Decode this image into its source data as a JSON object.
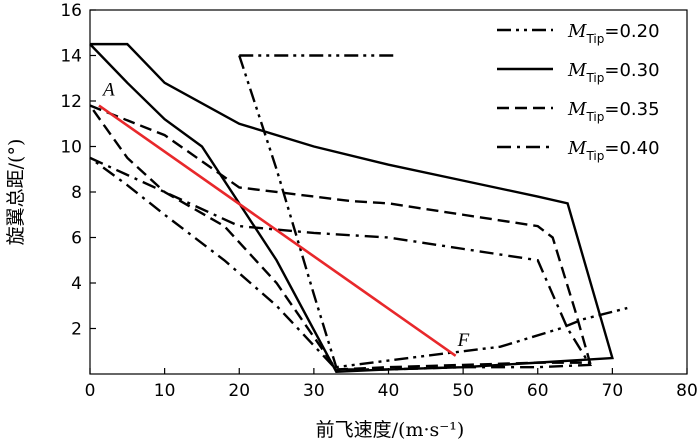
{
  "chart_data": {
    "type": "line",
    "title": "",
    "xlabel": "前飞速度/(m·s⁻¹)",
    "ylabel": "旋翼总距/(°)",
    "xlim": [
      0,
      80
    ],
    "ylim": [
      0,
      16
    ],
    "xticks": [
      "0",
      "10",
      "20",
      "30",
      "40",
      "50",
      "60",
      "70",
      "80"
    ],
    "yticks": [
      "2",
      "4",
      "6",
      "8",
      "10",
      "12",
      "14",
      "16"
    ],
    "legend_position": "top-right",
    "series": [
      {
        "name": "M_Tip=0.20",
        "label_main": "M",
        "label_sub": "Tip",
        "label_val": "=0.20",
        "style": "dash-dot-dot",
        "x": [
          20,
          25,
          30,
          33,
          45,
          55,
          63,
          66,
          72
        ],
        "y": [
          14.0,
          9.0,
          3.5,
          0.3,
          0.8,
          1.2,
          2.0,
          2.4,
          2.9
        ],
        "branch": {
          "x": [
            20,
            30,
            40,
            41
          ],
          "y": [
            14.0,
            14.0,
            14.0,
            14.0
          ]
        }
      },
      {
        "name": "M_Tip=0.30",
        "label_main": "M",
        "label_sub": "Tip",
        "label_val": "=0.30",
        "style": "solid",
        "x": [
          0,
          5,
          10,
          20,
          30,
          40,
          50,
          60,
          64,
          70,
          60,
          50,
          40,
          33,
          25,
          15,
          10,
          5,
          0
        ],
        "y": [
          14.5,
          14.5,
          12.8,
          11.0,
          10.0,
          9.2,
          8.5,
          7.8,
          7.5,
          0.7,
          0.5,
          0.3,
          0.2,
          0.1,
          5.0,
          10.0,
          11.2,
          12.8,
          14.5
        ]
      },
      {
        "name": "M_Tip=0.35",
        "label_main": "M",
        "label_sub": "Tip",
        "label_val": "=0.35",
        "style": "dashed",
        "x": [
          0,
          10,
          20,
          30,
          35,
          40,
          50,
          60,
          62,
          65,
          67,
          60,
          50,
          40,
          33,
          25,
          18,
          10,
          5,
          0
        ],
        "y": [
          11.8,
          10.5,
          8.2,
          7.8,
          7.6,
          7.5,
          7.0,
          6.5,
          6.0,
          2.8,
          0.5,
          0.5,
          0.4,
          0.3,
          0.2,
          4.0,
          6.5,
          8.0,
          9.5,
          11.8
        ]
      },
      {
        "name": "M_Tip=0.40",
        "label_main": "M",
        "label_sub": "Tip",
        "label_val": "=0.40",
        "style": "dash-dot",
        "x": [
          0,
          10,
          20,
          30,
          40,
          50,
          60,
          64,
          67,
          60,
          50,
          40,
          33,
          25,
          18,
          10,
          5,
          0
        ],
        "y": [
          9.5,
          8.0,
          6.5,
          6.2,
          6.0,
          5.5,
          5.0,
          2.0,
          0.4,
          0.3,
          0.3,
          0.2,
          0.2,
          3.0,
          5.0,
          7.0,
          8.3,
          9.5
        ]
      }
    ],
    "highlight_line": {
      "color": "#e8282b",
      "x": [
        1.2,
        49
      ],
      "y": [
        11.8,
        0.8
      ],
      "start_label": "A",
      "end_label": "F"
    }
  }
}
